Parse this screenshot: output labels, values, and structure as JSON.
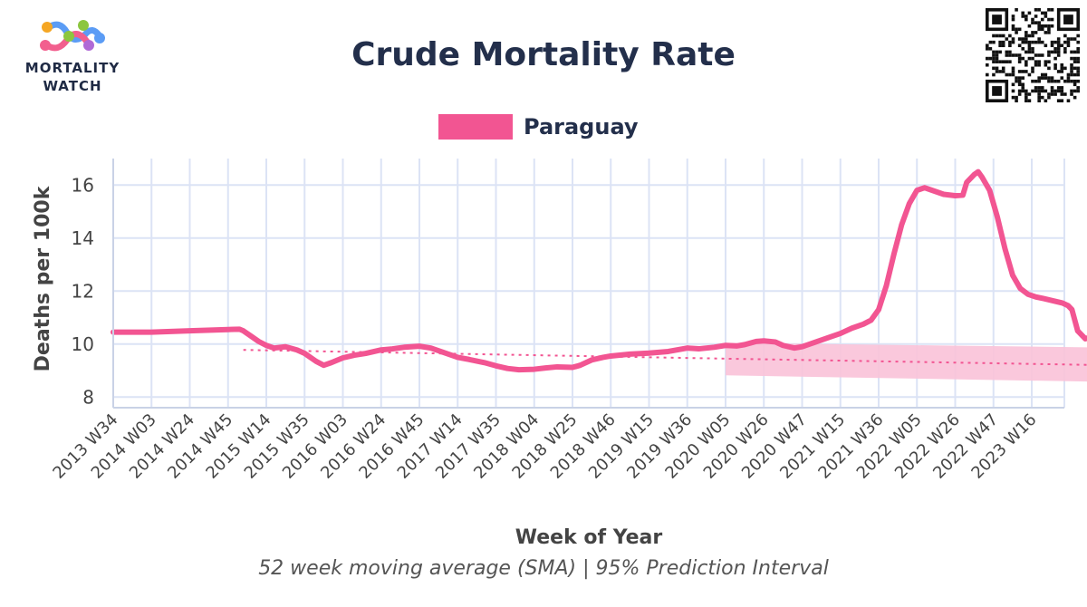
{
  "brand": {
    "line1": "MORTALITY",
    "line2": "WATCH",
    "logo_colors": [
      "#f25f8e",
      "#f5a623",
      "#8cc63f",
      "#5b9cf5",
      "#b06ad6"
    ]
  },
  "qr_code": {
    "icon": "qr-code-icon"
  },
  "colors": {
    "series": "#f25592",
    "band": "#f9c2d8",
    "grid": "#dce3f5",
    "text": "#232f4b"
  },
  "chart_data": {
    "type": "line",
    "title": "Crude Mortality Rate",
    "xlabel": "Week of Year",
    "ylabel": "Deaths per 100k",
    "caption": "52 week moving average (SMA) | 95% Prediction Interval",
    "legend": {
      "position": "top-center",
      "entries": [
        "Paraguay"
      ]
    },
    "grid": true,
    "ylim": [
      7.6,
      17
    ],
    "yticks": [
      8,
      10,
      12,
      14,
      16
    ],
    "xticks": [
      "2013 W34",
      "2014 W03",
      "2014 W24",
      "2014 W45",
      "2015 W14",
      "2015 W35",
      "2016 W03",
      "2016 W24",
      "2016 W45",
      "2017 W14",
      "2017 W35",
      "2018 W04",
      "2018 W25",
      "2018 W46",
      "2019 W15",
      "2019 W36",
      "2020 W05",
      "2020 W26",
      "2020 W47",
      "2021 W15",
      "2021 W36",
      "2022 W05",
      "2022 W26",
      "2022 W47",
      "2023 W16"
    ],
    "x_index_range": [
      0,
      24.9
    ],
    "series": [
      {
        "name": "Paraguay",
        "points": [
          [
            0,
            10.45
          ],
          [
            1,
            10.45
          ],
          [
            2,
            10.5
          ],
          [
            3,
            10.55
          ],
          [
            3.3,
            10.56
          ],
          [
            3.4,
            10.5
          ],
          [
            3.6,
            10.3
          ],
          [
            3.8,
            10.1
          ],
          [
            4,
            9.95
          ],
          [
            4.2,
            9.85
          ],
          [
            4.5,
            9.9
          ],
          [
            4.8,
            9.78
          ],
          [
            5,
            9.65
          ],
          [
            5.3,
            9.35
          ],
          [
            5.5,
            9.2
          ],
          [
            5.7,
            9.3
          ],
          [
            6,
            9.48
          ],
          [
            6.3,
            9.58
          ],
          [
            6.6,
            9.65
          ],
          [
            7,
            9.78
          ],
          [
            7.3,
            9.82
          ],
          [
            7.6,
            9.88
          ],
          [
            8,
            9.92
          ],
          [
            8.3,
            9.85
          ],
          [
            8.6,
            9.7
          ],
          [
            9,
            9.5
          ],
          [
            9.3,
            9.42
          ],
          [
            9.7,
            9.3
          ],
          [
            10,
            9.18
          ],
          [
            10.3,
            9.08
          ],
          [
            10.6,
            9.03
          ],
          [
            11,
            9.05
          ],
          [
            11.3,
            9.1
          ],
          [
            11.6,
            9.14
          ],
          [
            12,
            9.12
          ],
          [
            12.2,
            9.2
          ],
          [
            12.5,
            9.4
          ],
          [
            12.8,
            9.5
          ],
          [
            13,
            9.55
          ],
          [
            13.5,
            9.62
          ],
          [
            14,
            9.66
          ],
          [
            14.5,
            9.72
          ],
          [
            14.8,
            9.8
          ],
          [
            15,
            9.85
          ],
          [
            15.3,
            9.82
          ],
          [
            15.7,
            9.88
          ],
          [
            16,
            9.95
          ],
          [
            16.3,
            9.93
          ],
          [
            16.5,
            9.98
          ],
          [
            16.8,
            10.1
          ],
          [
            17,
            10.12
          ],
          [
            17.3,
            10.08
          ],
          [
            17.5,
            9.95
          ],
          [
            17.8,
            9.85
          ],
          [
            18,
            9.9
          ],
          [
            18.3,
            10.05
          ],
          [
            18.7,
            10.25
          ],
          [
            19,
            10.4
          ],
          [
            19.3,
            10.6
          ],
          [
            19.6,
            10.75
          ],
          [
            19.8,
            10.9
          ],
          [
            20,
            11.3
          ],
          [
            20.2,
            12.2
          ],
          [
            20.4,
            13.4
          ],
          [
            20.6,
            14.5
          ],
          [
            20.8,
            15.3
          ],
          [
            21,
            15.8
          ],
          [
            21.2,
            15.9
          ],
          [
            21.4,
            15.8
          ],
          [
            21.7,
            15.65
          ],
          [
            22,
            15.6
          ],
          [
            22.2,
            15.62
          ],
          [
            22.3,
            16.1
          ],
          [
            22.5,
            16.4
          ],
          [
            22.6,
            16.5
          ],
          [
            22.7,
            16.3
          ],
          [
            22.9,
            15.8
          ],
          [
            23.1,
            14.8
          ],
          [
            23.3,
            13.6
          ],
          [
            23.5,
            12.6
          ],
          [
            23.7,
            12.1
          ],
          [
            23.9,
            11.88
          ],
          [
            24.1,
            11.78
          ],
          [
            24.3,
            11.72
          ],
          [
            24.6,
            11.62
          ],
          [
            24.8,
            11.55
          ],
          [
            24.95,
            11.45
          ],
          [
            25.05,
            11.3
          ],
          [
            25.2,
            10.5
          ],
          [
            25.4,
            10.2
          ],
          [
            25.7,
            10.35
          ],
          [
            26,
            10.45
          ],
          [
            26.3,
            10.4
          ],
          [
            26.6,
            10.2
          ],
          [
            26.9,
            10.05
          ]
        ]
      }
    ],
    "baseline": {
      "points": [
        [
          3.4,
          9.78
        ],
        [
          16,
          9.45
        ],
        [
          26.9,
          9.18
        ]
      ]
    },
    "prediction_interval": {
      "x_start": 16,
      "x_end": 26.9,
      "upper_start": 10.05,
      "upper_end": 9.85,
      "lower_start": 8.82,
      "lower_end": 8.55
    }
  }
}
